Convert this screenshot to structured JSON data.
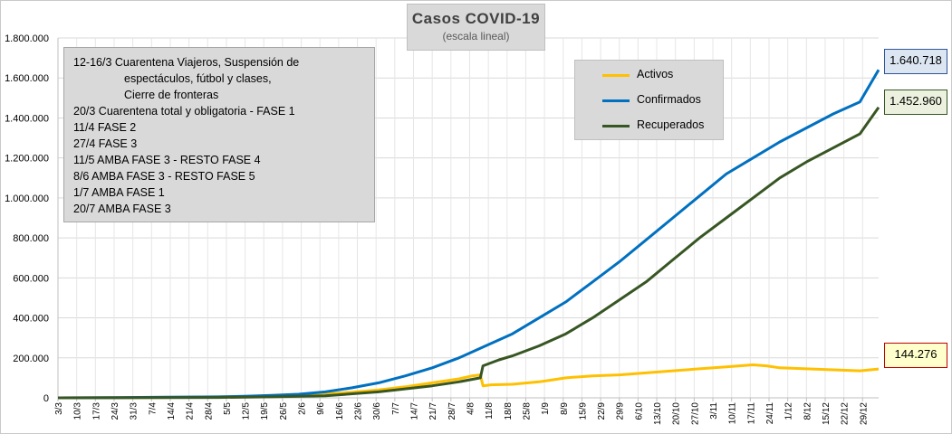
{
  "chart_data": {
    "type": "line",
    "title": "Casos COVID-19",
    "subtitle": "(escala lineal)",
    "ylim": [
      0,
      1800000
    ],
    "y_ticks": [
      "0",
      "200.000",
      "400.000",
      "600.000",
      "800.000",
      "1.000.000",
      "1.200.000",
      "1.400.000",
      "1.600.000",
      "1.800.000"
    ],
    "x_tick_labels": [
      "3/3",
      "10/3",
      "17/3",
      "24/3",
      "31/3",
      "7/4",
      "14/4",
      "21/4",
      "28/4",
      "5/5",
      "12/5",
      "19/5",
      "26/5",
      "2/6",
      "9/6",
      "16/6",
      "23/6",
      "30/6",
      "7/7",
      "14/7",
      "21/7",
      "28/7",
      "4/8",
      "11/8",
      "18/8",
      "25/8",
      "1/9",
      "8/9",
      "15/9",
      "22/9",
      "29/9",
      "6/10",
      "13/10",
      "20/10",
      "27/10",
      "3/11",
      "10/11",
      "17/11",
      "24/11",
      "1/12",
      "8/12",
      "15/12",
      "22/12",
      "29/12"
    ],
    "x_range_days": [
      0,
      307
    ],
    "grid": true,
    "legend_placement": "top-right",
    "series": [
      {
        "name": "Activos",
        "color": "#ffc000",
        "points": [
          [
            0,
            0
          ],
          [
            20,
            500
          ],
          [
            40,
            2000
          ],
          [
            60,
            5000
          ],
          [
            80,
            10000
          ],
          [
            100,
            20000
          ],
          [
            110,
            28000
          ],
          [
            120,
            40000
          ],
          [
            130,
            55000
          ],
          [
            140,
            75000
          ],
          [
            150,
            95000
          ],
          [
            155,
            110000
          ],
          [
            158,
            115000
          ],
          [
            159,
            60000
          ],
          [
            162,
            65000
          ],
          [
            170,
            68000
          ],
          [
            180,
            80000
          ],
          [
            185,
            90000
          ],
          [
            190,
            100000
          ],
          [
            200,
            110000
          ],
          [
            210,
            115000
          ],
          [
            220,
            125000
          ],
          [
            230,
            135000
          ],
          [
            240,
            145000
          ],
          [
            250,
            155000
          ],
          [
            255,
            160000
          ],
          [
            260,
            165000
          ],
          [
            265,
            160000
          ],
          [
            270,
            150000
          ],
          [
            280,
            145000
          ],
          [
            290,
            140000
          ],
          [
            300,
            135000
          ],
          [
            307,
            144276
          ]
        ]
      },
      {
        "name": "Confirmados",
        "color": "#0070c0",
        "points": [
          [
            0,
            0
          ],
          [
            20,
            1000
          ],
          [
            40,
            3000
          ],
          [
            60,
            5000
          ],
          [
            70,
            8000
          ],
          [
            80,
            12000
          ],
          [
            90,
            18000
          ],
          [
            100,
            30000
          ],
          [
            110,
            50000
          ],
          [
            120,
            75000
          ],
          [
            130,
            110000
          ],
          [
            140,
            150000
          ],
          [
            150,
            200000
          ],
          [
            160,
            260000
          ],
          [
            170,
            320000
          ],
          [
            180,
            400000
          ],
          [
            190,
            480000
          ],
          [
            200,
            580000
          ],
          [
            210,
            680000
          ],
          [
            220,
            790000
          ],
          [
            230,
            900000
          ],
          [
            240,
            1010000
          ],
          [
            250,
            1120000
          ],
          [
            260,
            1200000
          ],
          [
            270,
            1280000
          ],
          [
            280,
            1350000
          ],
          [
            290,
            1420000
          ],
          [
            300,
            1480000
          ],
          [
            307,
            1640718
          ]
        ]
      },
      {
        "name": "Recuperados",
        "color": "#375623",
        "points": [
          [
            0,
            0
          ],
          [
            20,
            500
          ],
          [
            40,
            1000
          ],
          [
            60,
            2000
          ],
          [
            80,
            5000
          ],
          [
            100,
            10000
          ],
          [
            120,
            30000
          ],
          [
            140,
            60000
          ],
          [
            150,
            80000
          ],
          [
            158,
            100000
          ],
          [
            159,
            160000
          ],
          [
            165,
            190000
          ],
          [
            170,
            210000
          ],
          [
            180,
            260000
          ],
          [
            190,
            320000
          ],
          [
            200,
            400000
          ],
          [
            210,
            490000
          ],
          [
            220,
            580000
          ],
          [
            230,
            690000
          ],
          [
            240,
            800000
          ],
          [
            250,
            900000
          ],
          [
            260,
            1000000
          ],
          [
            270,
            1100000
          ],
          [
            280,
            1180000
          ],
          [
            290,
            1250000
          ],
          [
            300,
            1320000
          ],
          [
            307,
            1452960
          ]
        ]
      }
    ],
    "end_labels": {
      "confirmados": "1.640.718",
      "recuperados": "1.452.960",
      "activos": "144.276"
    }
  },
  "notes": [
    {
      "text": "12-16/3  Cuarentena Viajeros, Suspensión de",
      "indent": false
    },
    {
      "text": "espectáculos, fútbol y clases,",
      "indent": true
    },
    {
      "text": "Cierre de fronteras",
      "indent": true
    },
    {
      "text": "20/3  Cuarentena total y obligatoria - FASE 1",
      "indent": false
    },
    {
      "text": "11/4  FASE 2",
      "indent": false
    },
    {
      "text": "27/4  FASE 3",
      "indent": false
    },
    {
      "text": "11/5  AMBA FASE 3  -  RESTO FASE 4",
      "indent": false
    },
    {
      "text": "8/6  AMBA FASE 3  -  RESTO FASE 5",
      "indent": false
    },
    {
      "text": "1/7  AMBA FASE 1",
      "indent": false
    },
    {
      "text": "20/7  AMBA FASE 3",
      "indent": false
    }
  ]
}
